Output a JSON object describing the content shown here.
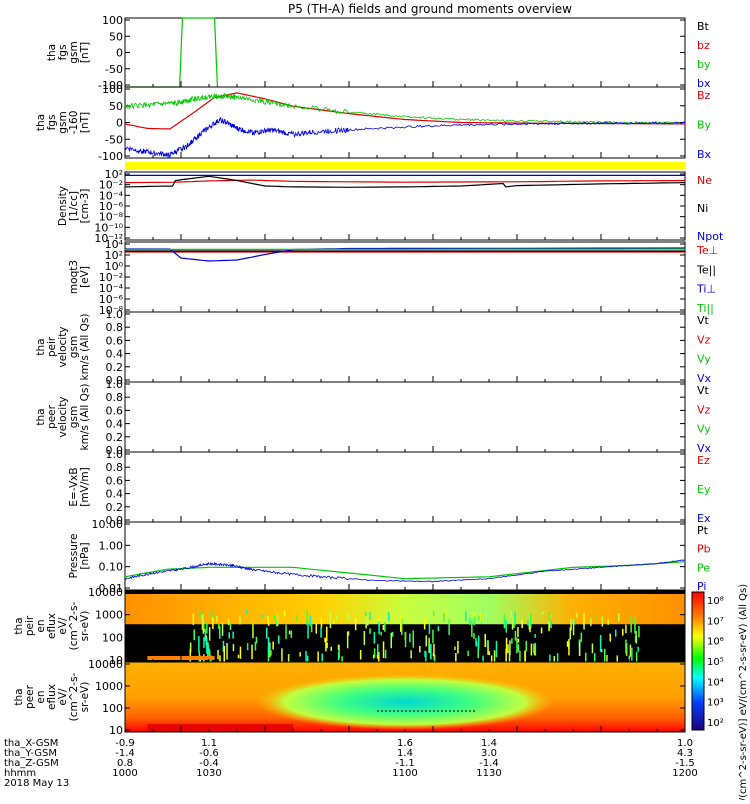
{
  "title": "P5 (TH-A) fields and ground moments overview",
  "colors": {
    "black": "#000000",
    "red": "#e00000",
    "green": "#00c800",
    "blue": "#0000e0",
    "yellow": "#ffff00"
  },
  "chart_data": [
    {
      "type": "line",
      "panel": "fgs_gsm",
      "ylabel": [
        "tha",
        "fgs",
        "gsm",
        "[nT]"
      ],
      "ylim": [
        -100,
        100
      ],
      "ticks": [
        "100",
        "50",
        "0",
        "-50",
        "-100"
      ],
      "series": [
        {
          "name": "Bt",
          "color": "#000000",
          "values": []
        },
        {
          "name": "bz",
          "color": "#e00000",
          "values": []
        },
        {
          "name": "by",
          "color": "#00c800",
          "values": [
            -100,
            -100,
            100,
            100,
            -100,
            -100
          ],
          "x": [
            1000,
            1019.5,
            1020.5,
            1032,
            1033,
            1033
          ]
        },
        {
          "name": "bx",
          "color": "#0000e0",
          "values": []
        }
      ]
    },
    {
      "type": "line",
      "panel": "fgs_gsm_dsl",
      "ylabel": [
        "tha",
        "fgs",
        "gsm",
        "-160",
        "[nT]"
      ],
      "ylim": [
        -120,
        120
      ],
      "ticks": [
        "100",
        "50",
        "0",
        "-50",
        "-100"
      ],
      "series": [
        {
          "name": "Bz",
          "color": "#e00000",
          "x": [
            1000,
            1008,
            1016,
            1024,
            1032,
            1040,
            1050,
            1060,
            1080,
            1100,
            1120,
            1140,
            1160,
            1180,
            1200
          ],
          "values": [
            -5,
            -20,
            -22,
            30,
            85,
            100,
            80,
            55,
            30,
            10,
            0,
            -2,
            -3,
            -4,
            -5
          ]
        },
        {
          "name": "By",
          "color": "#00c800",
          "x": [
            1000,
            1010,
            1018,
            1022,
            1028,
            1034,
            1040,
            1050,
            1060,
            1080,
            1100,
            1120,
            1140,
            1160,
            1180,
            1200
          ],
          "values": [
            55,
            60,
            65,
            75,
            85,
            90,
            85,
            70,
            55,
            35,
            20,
            10,
            5,
            2,
            0,
            -2
          ]
        },
        {
          "name": "Bx",
          "color": "#0000e0",
          "x": [
            1000,
            1008,
            1016,
            1022,
            1028,
            1034,
            1040,
            1046,
            1052,
            1060,
            1070,
            1080,
            1100,
            1120,
            1140,
            1160,
            1180,
            1200
          ],
          "values": [
            -85,
            -100,
            -110,
            -80,
            -30,
            10,
            -20,
            -35,
            -25,
            -40,
            -30,
            -25,
            -15,
            -8,
            -5,
            -3,
            -2,
            -1
          ]
        }
      ]
    },
    {
      "type": "line",
      "panel": "density",
      "ylabel": [
        "Density",
        "[1/cc]",
        "[cm-3]"
      ],
      "ticks": [
        "10²",
        "10⁻²",
        "10⁻⁴",
        "10⁻⁶",
        "10⁻⁸",
        "10⁻¹⁰",
        "10⁻¹²"
      ],
      "ylim": [
        -13,
        3
      ],
      "series": [
        {
          "name": "Ne",
          "color": "#e00000",
          "x": [
            1000,
            1018,
            1030,
            1045,
            1060,
            1100,
            1140,
            1170,
            1200
          ],
          "values": [
            0.5,
            0.6,
            0.9,
            1.1,
            0.8,
            0.6,
            0.7,
            0.9,
            1.0
          ]
        },
        {
          "name": "Ni",
          "color": "#000000",
          "x": [
            1000,
            1017,
            1018,
            1030,
            1040,
            1050,
            1060,
            1080,
            1100,
            1120,
            1135,
            1136,
            1140,
            1170,
            1200
          ],
          "values": [
            -0.5,
            -0.3,
            1.0,
            2.0,
            1.0,
            -0.3,
            -0.5,
            -0.6,
            -0.5,
            -0.3,
            0.3,
            -0.5,
            -0.2,
            0.2,
            0.5
          ]
        },
        {
          "name": "Npot",
          "color": "#0000e0",
          "x": [
            1000,
            1200
          ],
          "values": [
            2.2,
            2.2
          ]
        }
      ]
    },
    {
      "type": "line",
      "panel": "temperature",
      "ylabel": [
        "moqt3",
        "[eV]"
      ],
      "ticks": [
        "10⁴",
        "10²",
        "10⁰",
        "10⁻²",
        "10⁻⁴",
        "10⁻⁶",
        "10⁻⁸"
      ],
      "ylim": [
        -9,
        5
      ],
      "series": [
        {
          "name": "Te⊥",
          "color": "#e00000",
          "x": [
            1000,
            1200
          ],
          "values": [
            3.0,
            3.0
          ]
        },
        {
          "name": "Te||",
          "color": "#000000",
          "x": [
            1000,
            1200
          ],
          "values": [
            3.2,
            3.2
          ]
        },
        {
          "name": "Ti⊥",
          "color": "#0000e0",
          "x": [
            1000,
            1016,
            1020,
            1030,
            1040,
            1050,
            1060,
            1080,
            1200
          ],
          "values": [
            3.6,
            3.6,
            1.8,
            1.2,
            1.4,
            2.5,
            3.5,
            3.7,
            3.8
          ]
        },
        {
          "name": "Ti||",
          "color": "#00c800",
          "x": [
            1000,
            1200
          ],
          "values": [
            3.5,
            3.6
          ]
        }
      ]
    },
    {
      "type": "line",
      "panel": "peir_velocity",
      "ylabel": [
        "tha",
        "peir",
        "velocity",
        "gsm",
        "km/s (All Qs)"
      ],
      "ylim": [
        0,
        1
      ],
      "ticks": [
        "1.0",
        "0.8",
        "0.6",
        "0.4",
        "0.2",
        "0.0"
      ],
      "series": [
        {
          "name": "Vt",
          "color": "#000000",
          "values": []
        },
        {
          "name": "Vz",
          "color": "#e00000",
          "values": []
        },
        {
          "name": "Vy",
          "color": "#00c800",
          "values": []
        },
        {
          "name": "Vx",
          "color": "#0000e0",
          "values": []
        }
      ]
    },
    {
      "type": "line",
      "panel": "peer_velocity",
      "ylabel": [
        "tha",
        "peer",
        "velocity",
        "gsm",
        "km/s (All Qs)"
      ],
      "ylim": [
        0,
        1
      ],
      "ticks": [
        "1.0",
        "0.8",
        "0.6",
        "0.4",
        "0.2",
        "0.0"
      ],
      "series": [
        {
          "name": "Vt",
          "color": "#000000",
          "values": []
        },
        {
          "name": "Vz",
          "color": "#e00000",
          "values": []
        },
        {
          "name": "Vy",
          "color": "#00c800",
          "values": []
        },
        {
          "name": "Vx",
          "color": "#0000e0",
          "values": []
        }
      ]
    },
    {
      "type": "line",
      "panel": "efield",
      "ylabel": [
        "E=-VxB",
        "[mV/m]"
      ],
      "ylim": [
        0,
        1
      ],
      "ticks": [
        "1.0",
        "0.8",
        "0.6",
        "0.4",
        "0.2",
        "0.0"
      ],
      "series": [
        {
          "name": "Ez",
          "color": "#e00000",
          "values": []
        },
        {
          "name": "Ey",
          "color": "#00c800",
          "values": []
        },
        {
          "name": "Ex",
          "color": "#0000e0",
          "values": []
        }
      ]
    },
    {
      "type": "line",
      "panel": "pressure",
      "ylabel": [
        "Pressure",
        "[nPa]"
      ],
      "ticks": [
        "10.00",
        "1.00",
        "0.10",
        "0.01"
      ],
      "ylim": [
        -2.2,
        1.4
      ],
      "series": [
        {
          "name": "Pt",
          "color": "#000000",
          "values": []
        },
        {
          "name": "Pb",
          "color": "#e00000",
          "values": []
        },
        {
          "name": "Pe",
          "color": "#00c800",
          "x": [
            1000,
            1015,
            1030,
            1060,
            1100,
            1130,
            1160,
            1180,
            1200
          ],
          "values": [
            -1.5,
            -1.1,
            -1.0,
            -1.0,
            -1.6,
            -1.5,
            -1.0,
            -0.9,
            -0.7
          ]
        },
        {
          "name": "Pi",
          "color": "#0000e0",
          "x": [
            1000,
            1010,
            1020,
            1030,
            1038,
            1045,
            1055,
            1070,
            1090,
            1110,
            1130,
            1150,
            1170,
            1190,
            1200
          ],
          "values": [
            -1.6,
            -1.3,
            -1.1,
            -0.8,
            -0.9,
            -1.1,
            -1.3,
            -1.5,
            -1.7,
            -1.75,
            -1.6,
            -1.2,
            -1.0,
            -0.8,
            -0.6
          ]
        }
      ]
    },
    {
      "type": "heatmap",
      "panel": "peir_en_eflux",
      "ylabel": [
        "tha",
        "peir",
        "en",
        "eflux",
        "eV/",
        "(cm^2-s-",
        "sr-eV)"
      ],
      "ticks": [
        "10000",
        "1000",
        "100",
        "10"
      ]
    },
    {
      "type": "heatmap",
      "panel": "peer_en_eflux",
      "ylabel": [
        "tha",
        "peer",
        "en",
        "eflux",
        "eV/",
        "(cm^2-s-",
        "sr-eV)"
      ],
      "ticks": [
        "10000",
        "1000",
        "100",
        "10"
      ]
    }
  ],
  "colorbar": {
    "ticks": [
      "10⁸",
      "10⁷",
      "10⁶",
      "10⁵",
      "10⁴",
      "10³",
      "10²"
    ],
    "label": "[eV/(cm^2-s-sr-eV)] eV/(cm^2-s-sr-eV) (All Qs)"
  },
  "xaxis": {
    "row_labels": [
      "tha_X-GSM",
      "tha_Y-GSM",
      "tha_Z-GSM",
      "hhmm",
      "2018 May 13"
    ],
    "columns": [
      {
        "values": [
          "-0.9",
          "-1.4",
          "0.8",
          "1000"
        ]
      },
      {
        "values": [
          "1.1",
          "-0.6",
          "-0.4",
          "1030"
        ]
      },
      {
        "values": [
          "1.6",
          "1.4",
          "-1.1",
          "1100"
        ]
      },
      {
        "values": [
          "1.4",
          "3.0",
          "-1.4",
          "1130"
        ]
      },
      {
        "values": [
          "1.0",
          "4.3",
          "-1.5",
          "1200"
        ]
      }
    ]
  }
}
